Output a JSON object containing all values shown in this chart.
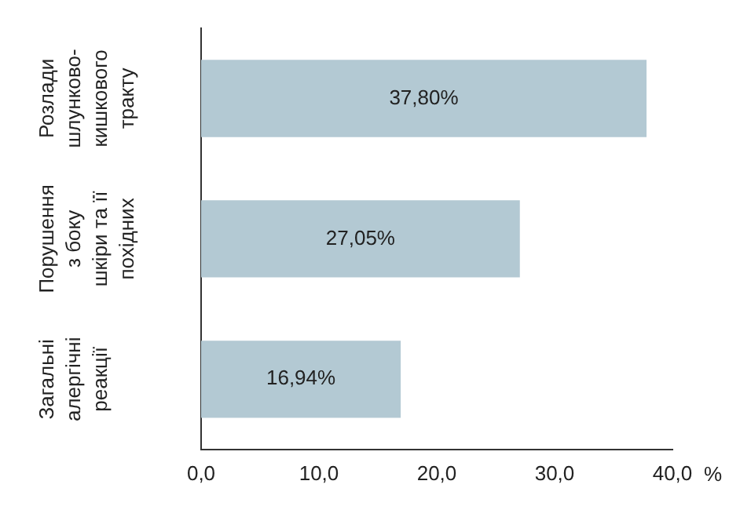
{
  "chart_data": {
    "type": "bar",
    "orientation": "horizontal",
    "categories": [
      "Розлади\nшлунково-\nкишкового\nтракту",
      "Порушення\nз боку\nшкіри та її\nпохідних",
      "Загальні\nалергічні\nреакції"
    ],
    "values": [
      37.8,
      27.05,
      16.94
    ],
    "value_labels": [
      "37,80%",
      "27,05%",
      "16,94%"
    ],
    "color": "#b3c9d3",
    "xlabel": "%",
    "xlim": [
      0,
      40
    ],
    "xticks": [
      {
        "value": 0,
        "label": "0,0"
      },
      {
        "value": 10,
        "label": "10,0"
      },
      {
        "value": 20,
        "label": "20,0"
      },
      {
        "value": 30,
        "label": "30,0"
      },
      {
        "value": 40,
        "label": "40,0"
      }
    ],
    "grid": false,
    "legend": false
  }
}
